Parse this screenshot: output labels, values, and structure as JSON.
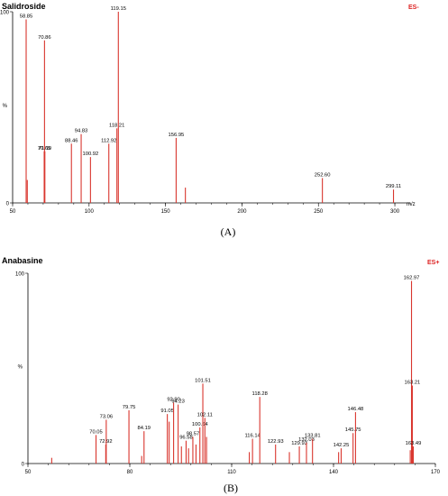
{
  "chart_data": [
    {
      "type": "bar",
      "title": "Salidroside",
      "mode": "ES-",
      "xlabel": "m/z",
      "ylabel": "%",
      "xlim": [
        50,
        310
      ],
      "ylim": [
        0,
        100
      ],
      "x_ticks": [
        "50",
        "100",
        "150",
        "200",
        "250",
        "300"
      ],
      "y_ticks": [
        "0",
        "100"
      ],
      "caption": "(A)",
      "peaks": [
        {
          "x": 58.85,
          "y": 96,
          "label": "58.85"
        },
        {
          "x": 59.6,
          "y": 12,
          "label": ""
        },
        {
          "x": 70.65,
          "y": 27,
          "label": "70.65"
        },
        {
          "x": 70.86,
          "y": 85,
          "label": "70.86"
        },
        {
          "x": 71.1,
          "y": 27,
          "label": "71.10"
        },
        {
          "x": 88.46,
          "y": 31,
          "label": "88.46"
        },
        {
          "x": 94.83,
          "y": 36,
          "label": "94.83"
        },
        {
          "x": 100.92,
          "y": 24,
          "label": "100.92"
        },
        {
          "x": 112.92,
          "y": 31,
          "label": "112.92"
        },
        {
          "x": 118.21,
          "y": 39,
          "label": "118.21"
        },
        {
          "x": 119.15,
          "y": 100,
          "label": "119.15"
        },
        {
          "x": 156.95,
          "y": 34,
          "label": "156.95"
        },
        {
          "x": 163.0,
          "y": 8,
          "label": ""
        },
        {
          "x": 252.6,
          "y": 13,
          "label": "252.60"
        },
        {
          "x": 299.11,
          "y": 7,
          "label": "299.11"
        }
      ]
    },
    {
      "type": "bar",
      "title": "Anabasine",
      "mode": "ES+",
      "xlabel": "",
      "ylabel": "%",
      "xlim": [
        50,
        170
      ],
      "ylim": [
        0,
        100
      ],
      "x_ticks": [
        "50",
        "80",
        "110",
        "140",
        "170"
      ],
      "y_ticks": [
        "0",
        "100"
      ],
      "caption": "(B)",
      "peaks": [
        {
          "x": 57.0,
          "y": 3,
          "label": ""
        },
        {
          "x": 70.05,
          "y": 15,
          "label": "70.05"
        },
        {
          "x": 72.92,
          "y": 10,
          "label": "72.92"
        },
        {
          "x": 73.06,
          "y": 23,
          "label": "73.06"
        },
        {
          "x": 79.75,
          "y": 28,
          "label": "79.75"
        },
        {
          "x": 83.5,
          "y": 4,
          "label": ""
        },
        {
          "x": 84.19,
          "y": 17,
          "label": "84.19"
        },
        {
          "x": 91.05,
          "y": 26,
          "label": "91.05"
        },
        {
          "x": 91.6,
          "y": 22,
          "label": ""
        },
        {
          "x": 92.9,
          "y": 32,
          "label": "92.90"
        },
        {
          "x": 94.23,
          "y": 31,
          "label": "94.23"
        },
        {
          "x": 95.2,
          "y": 9,
          "label": ""
        },
        {
          "x": 96.58,
          "y": 12,
          "label": "96.58"
        },
        {
          "x": 97.3,
          "y": 8,
          "label": ""
        },
        {
          "x": 98.57,
          "y": 14,
          "label": "98.57"
        },
        {
          "x": 99.5,
          "y": 10,
          "label": ""
        },
        {
          "x": 100.64,
          "y": 19,
          "label": "100.64"
        },
        {
          "x": 101.51,
          "y": 42,
          "label": "101.51"
        },
        {
          "x": 102.11,
          "y": 24,
          "label": "102.11"
        },
        {
          "x": 102.6,
          "y": 14,
          "label": ""
        },
        {
          "x": 115.2,
          "y": 6,
          "label": ""
        },
        {
          "x": 116.14,
          "y": 13,
          "label": "116.14"
        },
        {
          "x": 118.28,
          "y": 35,
          "label": "118.28"
        },
        {
          "x": 122.93,
          "y": 10,
          "label": "122.93"
        },
        {
          "x": 127.0,
          "y": 6,
          "label": ""
        },
        {
          "x": 129.93,
          "y": 9,
          "label": "129.93"
        },
        {
          "x": 132.03,
          "y": 11,
          "label": "132.03"
        },
        {
          "x": 133.81,
          "y": 13,
          "label": "133.81"
        },
        {
          "x": 141.5,
          "y": 6,
          "label": ""
        },
        {
          "x": 142.25,
          "y": 8,
          "label": "142.25"
        },
        {
          "x": 145.75,
          "y": 16,
          "label": "145.75"
        },
        {
          "x": 146.48,
          "y": 27,
          "label": "146.48"
        },
        {
          "x": 162.6,
          "y": 7,
          "label": ""
        },
        {
          "x": 162.97,
          "y": 96,
          "label": "162.97"
        },
        {
          "x": 163.21,
          "y": 41,
          "label": "163.21"
        },
        {
          "x": 163.49,
          "y": 9,
          "label": "163.49"
        }
      ]
    }
  ]
}
